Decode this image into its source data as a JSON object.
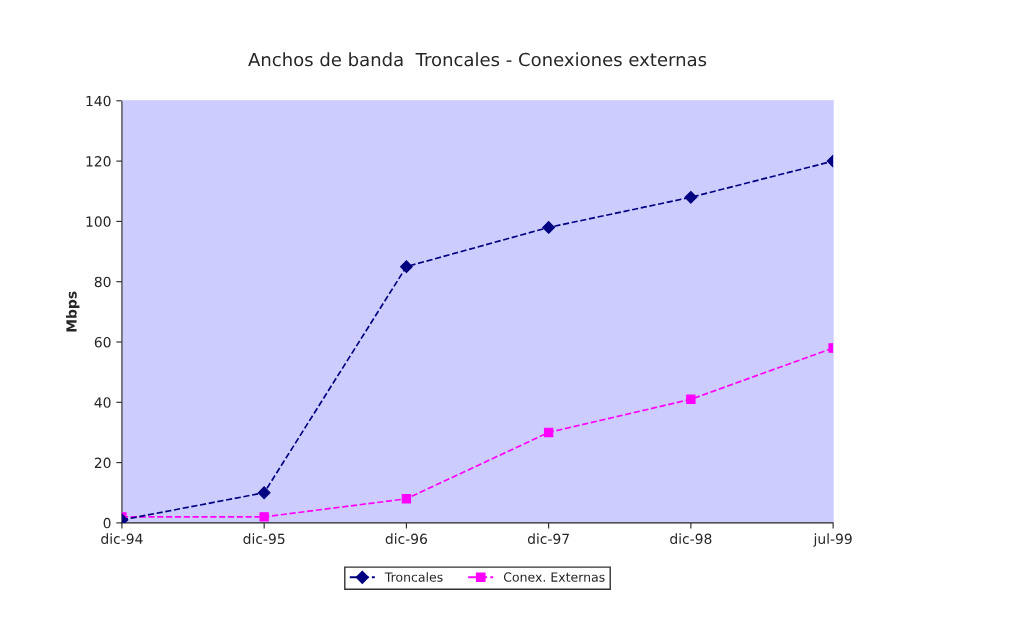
{
  "chart_data": {
    "type": "line",
    "title": "Anchos de banda  Troncales - Conexiones externas",
    "ylabel": "Mbps",
    "categories": [
      "dic-94",
      "dic-95",
      "dic-96",
      "dic-97",
      "dic-98",
      "jul-99"
    ],
    "series": [
      {
        "name": "Troncales",
        "color": "#000080",
        "marker": "diamond",
        "values": [
          1,
          10,
          85,
          98,
          108,
          120
        ]
      },
      {
        "name": "Conex. Externas",
        "color": "#ff00ff",
        "marker": "square",
        "values": [
          2,
          2,
          8,
          30,
          41,
          58
        ]
      }
    ],
    "ylim": [
      0,
      140
    ],
    "yticks": [
      0,
      20,
      40,
      60,
      80,
      100,
      120,
      140
    ],
    "grid": false,
    "legend": "bottom",
    "line_style": "dashed"
  }
}
